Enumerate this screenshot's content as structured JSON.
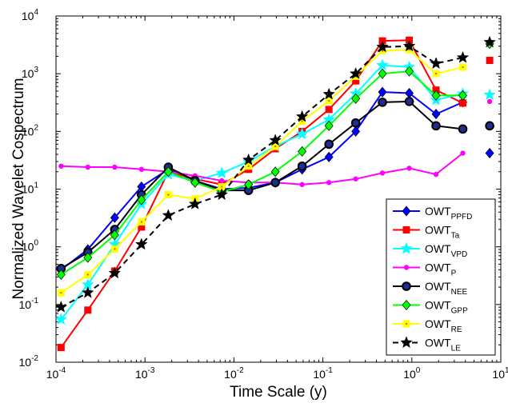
{
  "chart_data": {
    "type": "line",
    "xscale": "log",
    "yscale": "log",
    "xlim": [
      0.0001,
      10
    ],
    "ylim": [
      0.01,
      10000
    ],
    "xlabel": "Time Scale (y)",
    "ylabel": "Normalized Wavelet Cospectrum",
    "x_ticks": [
      {
        "base": "10",
        "exp": "-4",
        "value": 0.0001
      },
      {
        "base": "10",
        "exp": "-3",
        "value": 0.001
      },
      {
        "base": "10",
        "exp": "-2",
        "value": 0.01
      },
      {
        "base": "10",
        "exp": "-1",
        "value": 0.1
      },
      {
        "base": "10",
        "exp": "0",
        "value": 1
      },
      {
        "base": "10",
        "exp": "1",
        "value": 10
      }
    ],
    "y_ticks": [
      {
        "base": "10",
        "exp": "-2",
        "value": 0.01
      },
      {
        "base": "10",
        "exp": "-1",
        "value": 0.1
      },
      {
        "base": "10",
        "exp": "0",
        "value": 1
      },
      {
        "base": "10",
        "exp": "1",
        "value": 10
      },
      {
        "base": "10",
        "exp": "2",
        "value": 100
      },
      {
        "base": "10",
        "exp": "3",
        "value": 1000
      },
      {
        "base": "10",
        "exp": "4",
        "value": 10000
      }
    ],
    "grid": false,
    "legend_position": "bottom-right",
    "x": [
      0.000114,
      0.000228,
      0.000457,
      0.000913,
      0.00183,
      0.00365,
      0.0073,
      0.0146,
      0.0292,
      0.0584,
      0.117,
      0.234,
      0.467,
      0.935,
      1.87,
      3.74
    ],
    "series": [
      {
        "name": "OWT",
        "sub": "PPFD",
        "color": "#0000ff",
        "marker": "diamond",
        "dash": false,
        "values": [
          0.4,
          0.9,
          3.2,
          11,
          22,
          14,
          10,
          10.5,
          13,
          22,
          36,
          100,
          480,
          460,
          200,
          320
        ],
        "extra": {
          "x": 7.5,
          "y": 42
        }
      },
      {
        "name": "OWT",
        "sub": "Ta",
        "color": "#ff0000",
        "marker": "square",
        "dash": false,
        "values": [
          0.018,
          0.08,
          0.38,
          2.2,
          20,
          15,
          12,
          22,
          50,
          100,
          240,
          750,
          3700,
          3800,
          520,
          310
        ],
        "extra": {
          "x": 7.5,
          "y": 1700
        }
      },
      {
        "name": "OWT",
        "sub": "VPD",
        "color": "#00ffff",
        "marker": "star",
        "dash": false,
        "values": [
          0.055,
          0.22,
          1.1,
          5.5,
          18,
          14,
          19,
          30,
          55,
          90,
          160,
          450,
          1400,
          1300,
          350,
          450
        ],
        "extra": {
          "x": 7.5,
          "y": 430
        }
      },
      {
        "name": "OWT",
        "sub": "P",
        "color": "#ff00ff",
        "marker": "circle-small",
        "dash": false,
        "values": [
          25,
          24,
          24,
          22,
          20,
          17,
          14,
          13,
          13,
          12,
          13,
          15,
          19,
          23,
          18,
          42
        ],
        "extra": {
          "x": 7.5,
          "y": 330
        }
      },
      {
        "name": "OWT",
        "sub": "NEE",
        "color": "#000000",
        "marker": "circle",
        "dash": false,
        "values": [
          0.42,
          0.8,
          2.0,
          8,
          24,
          14,
          9.5,
          9.5,
          13,
          25,
          60,
          140,
          320,
          330,
          125,
          110
        ],
        "extra": {
          "x": 7.5,
          "y": 125
        }
      },
      {
        "name": "OWT",
        "sub": "GPP",
        "color": "#00ff00",
        "marker": "diamond",
        "dash": false,
        "values": [
          0.33,
          0.65,
          1.6,
          6.5,
          20,
          13,
          9,
          12,
          20,
          45,
          125,
          370,
          1000,
          1100,
          420,
          420
        ],
        "extra": {
          "x": 7.5,
          "y": 3300
        }
      },
      {
        "name": "OWT",
        "sub": "RE",
        "color": "#ffff00",
        "marker": "square",
        "dash": false,
        "values": [
          0.16,
          0.33,
          0.92,
          2.7,
          8,
          6.8,
          11,
          25,
          55,
          150,
          340,
          900,
          2500,
          2600,
          1000,
          1300
        ],
        "extra": null
      },
      {
        "name": "OWT",
        "sub": "LE",
        "color": "#000000",
        "marker": "star",
        "dash": true,
        "values": [
          0.09,
          0.16,
          0.35,
          1.1,
          3.5,
          5.5,
          8,
          32,
          70,
          180,
          440,
          1000,
          2900,
          3000,
          1500,
          1900
        ],
        "extra": {
          "x": 7.5,
          "y": 3500
        }
      }
    ]
  }
}
